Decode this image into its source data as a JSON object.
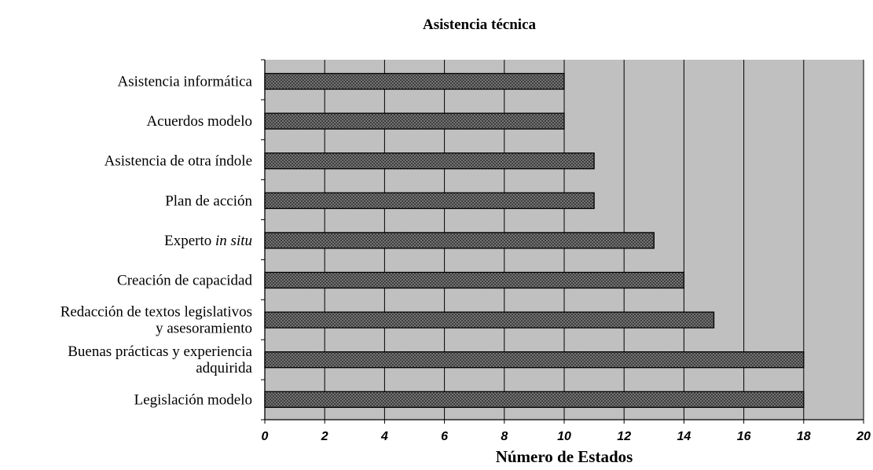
{
  "chart_data": {
    "type": "bar",
    "orientation": "horizontal",
    "title": "Asistencia técnica",
    "xlabel": "Número de Estados",
    "ylabel": "",
    "xlim": [
      0,
      20
    ],
    "x_ticks": [
      0,
      2,
      4,
      6,
      8,
      10,
      12,
      14,
      16,
      18,
      20
    ],
    "grid": "vertical",
    "legend": "none",
    "categories": [
      {
        "label_lines": [
          "Asistencia informática"
        ],
        "label_italic": ""
      },
      {
        "label_lines": [
          "Acuerdos modelo"
        ],
        "label_italic": ""
      },
      {
        "label_lines": [
          "Asistencia de otra índole"
        ],
        "label_italic": ""
      },
      {
        "label_lines": [
          "Plan de acción"
        ],
        "label_italic": ""
      },
      {
        "label_lines": [
          "Experto "
        ],
        "label_italic": "in situ"
      },
      {
        "label_lines": [
          "Creación de capacidad"
        ],
        "label_italic": ""
      },
      {
        "label_lines": [
          "Redacción de textos legislativos",
          "y asesoramiento"
        ],
        "label_italic": ""
      },
      {
        "label_lines": [
          "Buenas prácticas y experiencia",
          "adquirida"
        ],
        "label_italic": ""
      },
      {
        "label_lines": [
          "Legislación modelo"
        ],
        "label_italic": ""
      }
    ],
    "values": [
      10,
      10,
      11,
      11,
      13,
      14,
      15,
      18,
      18
    ],
    "colors": {
      "plot_background": "#c0c0c0",
      "bar_fill": "#8c8c8c",
      "bar_pattern": "#3a3a3a",
      "axis": "#000000"
    }
  }
}
